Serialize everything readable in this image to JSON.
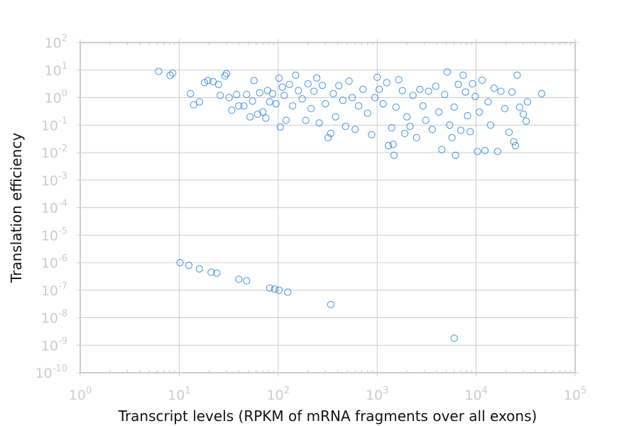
{
  "chart_data": {
    "type": "scatter",
    "title": "",
    "xlabel": "Transcript levels (RPKM of mRNA fragments over all exons)",
    "ylabel": "Translation efficiency",
    "x_scale": "log",
    "y_scale": "log",
    "xlim": [
      1,
      100000
    ],
    "ylim": [
      1e-10,
      100
    ],
    "grid": true,
    "marker": "open-circle",
    "colors": {
      "marker": "#1f7fe0",
      "grid": "#cccccc",
      "tick_label": "#cccccc",
      "axis_title": "#111111"
    },
    "x_ticks": [
      {
        "base": "10",
        "exp": "0",
        "value": 1
      },
      {
        "base": "10",
        "exp": "1",
        "value": 10
      },
      {
        "base": "10",
        "exp": "2",
        "value": 100
      },
      {
        "base": "10",
        "exp": "3",
        "value": 1000
      },
      {
        "base": "10",
        "exp": "4",
        "value": 10000
      },
      {
        "base": "10",
        "exp": "5",
        "value": 100000
      }
    ],
    "y_ticks": [
      {
        "base": "10",
        "exp": "2",
        "value": 100
      },
      {
        "base": "10",
        "exp": "1",
        "value": 10
      },
      {
        "base": "10",
        "exp": "0",
        "value": 1
      },
      {
        "base": "10",
        "exp": "-1",
        "value": 0.1
      },
      {
        "base": "10",
        "exp": "-2",
        "value": 0.01
      },
      {
        "base": "10",
        "exp": "-3",
        "value": 0.001
      },
      {
        "base": "10",
        "exp": "-4",
        "value": 0.0001
      },
      {
        "base": "10",
        "exp": "-5",
        "value": 1e-05
      },
      {
        "base": "10",
        "exp": "-6",
        "value": 1e-06
      },
      {
        "base": "10",
        "exp": "-7",
        "value": 1e-07
      },
      {
        "base": "10",
        "exp": "-8",
        "value": 1e-08
      },
      {
        "base": "10",
        "exp": "-9",
        "value": 1e-09
      },
      {
        "base": "10",
        "exp": "-10",
        "value": 1e-10
      }
    ],
    "series": [
      {
        "points": [
          [
            6.2,
            9.0
          ],
          [
            8.1,
            6.4
          ],
          [
            8.6,
            7.8
          ],
          [
            13.0,
            1.4
          ],
          [
            14.0,
            0.55
          ],
          [
            16.0,
            0.7
          ],
          [
            18.0,
            3.5
          ],
          [
            19.5,
            4.2
          ],
          [
            22.0,
            3.8
          ],
          [
            25.0,
            3.0
          ],
          [
            26.0,
            1.2
          ],
          [
            29.0,
            6.2
          ],
          [
            30.0,
            7.5
          ],
          [
            32.0,
            1.0
          ],
          [
            34.0,
            0.35
          ],
          [
            38.0,
            1.3
          ],
          [
            40.0,
            0.5
          ],
          [
            45.0,
            0.5
          ],
          [
            48.0,
            1.3
          ],
          [
            52.0,
            0.2
          ],
          [
            55.0,
            0.75
          ],
          [
            57.0,
            4.2
          ],
          [
            62.0,
            0.25
          ],
          [
            65.0,
            1.5
          ],
          [
            70.0,
            0.3
          ],
          [
            75.0,
            0.18
          ],
          [
            78.0,
            1.8
          ],
          [
            82.0,
            0.7
          ],
          [
            88.0,
            1.4
          ],
          [
            95.0,
            0.6
          ],
          [
            102.0,
            5.1
          ],
          [
            105.0,
            0.085
          ],
          [
            110.0,
            2.4
          ],
          [
            115.0,
            1.2
          ],
          [
            120.0,
            0.15
          ],
          [
            130.0,
            3.0
          ],
          [
            140.0,
            0.5
          ],
          [
            150.0,
            6.5
          ],
          [
            160.0,
            1.8
          ],
          [
            175.0,
            0.9
          ],
          [
            190.0,
            0.15
          ],
          [
            200.0,
            3.2
          ],
          [
            215.0,
            0.4
          ],
          [
            230.0,
            1.7
          ],
          [
            245.0,
            5.2
          ],
          [
            260.0,
            0.12
          ],
          [
            280.0,
            2.8
          ],
          [
            300.0,
            0.6
          ],
          [
            320.0,
            0.035
          ],
          [
            340.0,
            0.05
          ],
          [
            360.0,
            1.4
          ],
          [
            380.0,
            0.2
          ],
          [
            410.0,
            2.7
          ],
          [
            450.0,
            0.8
          ],
          [
            480.0,
            0.09
          ],
          [
            520.0,
            4.0
          ],
          [
            560.0,
            1.0
          ],
          [
            600.0,
            0.07
          ],
          [
            650.0,
            0.5
          ],
          [
            720.0,
            2.0
          ],
          [
            800.0,
            0.27
          ],
          [
            880.0,
            0.045
          ],
          [
            950.0,
            1.0
          ],
          [
            1000.0,
            5.5
          ],
          [
            1050.0,
            2.0
          ],
          [
            1150.0,
            0.6
          ],
          [
            1250.0,
            3.5
          ],
          [
            1300.0,
            0.018
          ],
          [
            1400.0,
            0.08
          ],
          [
            1450.0,
            0.02
          ],
          [
            1480.0,
            0.008
          ],
          [
            1550.0,
            0.45
          ],
          [
            1650.0,
            4.5
          ],
          [
            1800.0,
            1.8
          ],
          [
            1900.0,
            0.05
          ],
          [
            2000.0,
            0.2
          ],
          [
            2150.0,
            0.09
          ],
          [
            2300.0,
            1.2
          ],
          [
            2500.0,
            0.035
          ],
          [
            2700.0,
            2.0
          ],
          [
            2900.0,
            0.5
          ],
          [
            3100.0,
            0.15
          ],
          [
            3300.0,
            1.7
          ],
          [
            3600.0,
            0.07
          ],
          [
            3900.0,
            2.6
          ],
          [
            4200.0,
            0.3
          ],
          [
            4500.0,
            0.013
          ],
          [
            4800.0,
            1.3
          ],
          [
            5100.0,
            8.5
          ],
          [
            5400.0,
            0.1
          ],
          [
            5700.0,
            0.035
          ],
          [
            6000.0,
            0.45
          ],
          [
            6200.0,
            0.008
          ],
          [
            6600.0,
            3.0
          ],
          [
            7000.0,
            0.065
          ],
          [
            7400.0,
            6.5
          ],
          [
            7800.0,
            1.6
          ],
          [
            8200.0,
            0.22
          ],
          [
            8700.0,
            0.058
          ],
          [
            9200.0,
            3.2
          ],
          [
            9800.0,
            1.1
          ],
          [
            10300.0,
            0.011
          ],
          [
            10800.0,
            0.3
          ],
          [
            11500.0,
            4.3
          ],
          [
            12300.0,
            0.012
          ],
          [
            13200.0,
            0.7
          ],
          [
            14000.0,
            0.1
          ],
          [
            15200.0,
            2.2
          ],
          [
            16500.0,
            0.011
          ],
          [
            17800.0,
            1.7
          ],
          [
            19500.0,
            0.4
          ],
          [
            21500.0,
            0.055
          ],
          [
            23000.0,
            1.6
          ],
          [
            24000.0,
            0.025
          ],
          [
            25000.0,
            0.018
          ],
          [
            26000.0,
            6.5
          ],
          [
            27500.0,
            0.45
          ],
          [
            30000.0,
            0.25
          ],
          [
            32000.0,
            0.14
          ],
          [
            33000.0,
            0.7
          ],
          [
            46000.0,
            1.4
          ],
          [
            10.2,
            1e-06
          ],
          [
            12.5,
            8e-07
          ],
          [
            16.0,
            6e-07
          ],
          [
            21.0,
            4.5e-07
          ],
          [
            24.0,
            4.2e-07
          ],
          [
            40.0,
            2.5e-07
          ],
          [
            48.0,
            2.2e-07
          ],
          [
            82.0,
            1.2e-07
          ],
          [
            92.0,
            1.1e-07
          ],
          [
            102.0,
            1e-07
          ],
          [
            125.0,
            8.5e-08
          ],
          [
            340.0,
            3e-08
          ],
          [
            6000.0,
            1.8e-09
          ]
        ]
      }
    ]
  }
}
